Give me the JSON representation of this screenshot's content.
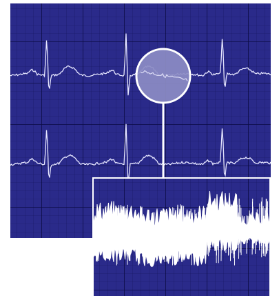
{
  "image": {
    "subject": "ecg-strip",
    "colors": {
      "background": "#ffffff",
      "paper": "#2a2a8a",
      "grid_minor": "#15155e",
      "grid_major": "#0b0b44",
      "trace": "#e6e6ff",
      "magnifier_fill": "#8c8cc4",
      "magnifier_ring": "#ffffff",
      "zoom_noise": "#ffffff"
    }
  }
}
